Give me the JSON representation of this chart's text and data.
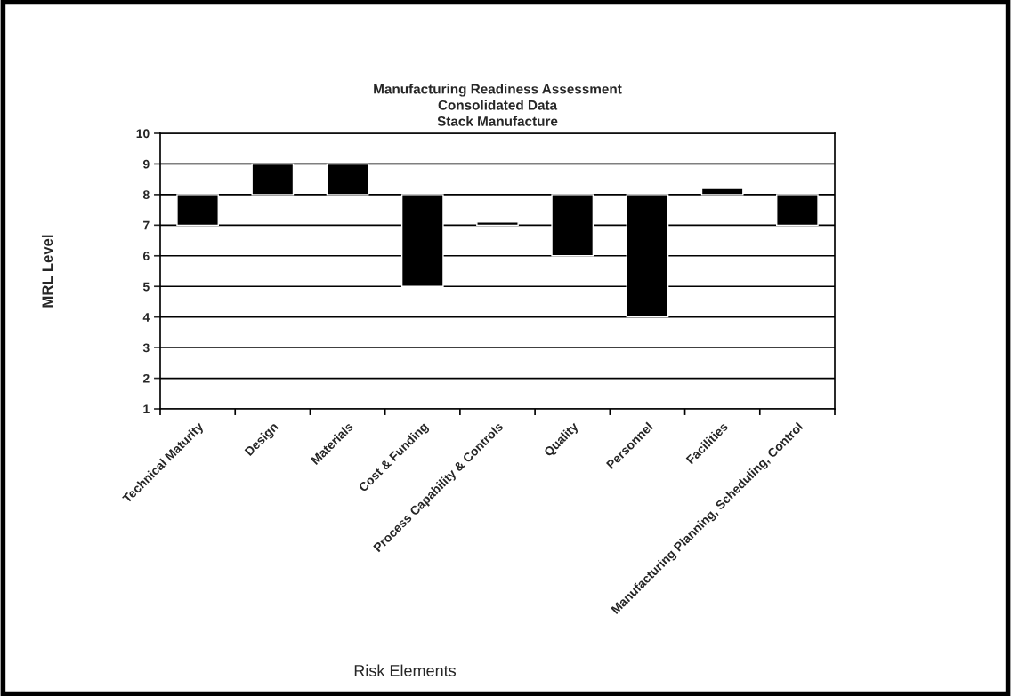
{
  "chart_data": {
    "type": "bar",
    "title": "Manufacturing Readiness Assessment\nConsolidated Data\nStack Manufacture",
    "xlabel": "Risk Elements",
    "ylabel": "MRL Level",
    "categories": [
      "Technical Maturity",
      "Design",
      "Materials",
      "Cost & Funding",
      "Process Capability & Controls",
      "Quality",
      "Personnel",
      "Facilities",
      "Manufacturing Planning, Scheduling, Control"
    ],
    "base": [
      7,
      8,
      8,
      5,
      7,
      6,
      4,
      8,
      7
    ],
    "values": [
      1,
      1,
      1,
      3,
      0.1,
      2,
      4,
      0.2,
      1
    ],
    "color": "#000000",
    "ylim": [
      1,
      10
    ],
    "yticks": [
      1,
      2,
      3,
      4,
      5,
      6,
      7,
      8,
      9,
      10
    ],
    "grid": "y",
    "legend": false
  }
}
